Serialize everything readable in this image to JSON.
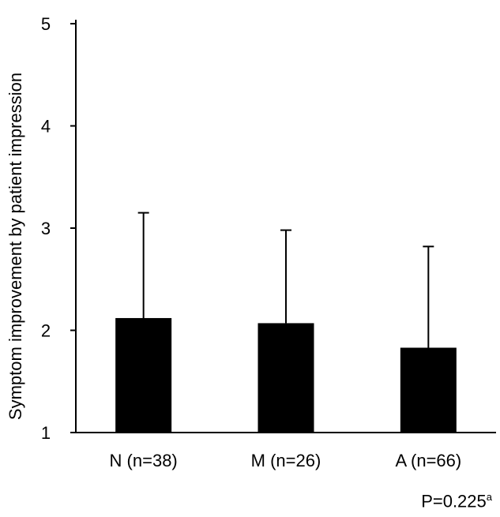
{
  "chart_data": {
    "type": "bar",
    "categories": [
      "N (n=38)",
      "M (n=26)",
      "A (n=66)"
    ],
    "values": [
      2.12,
      2.07,
      1.83
    ],
    "error_upper": [
      3.15,
      2.98,
      2.82
    ],
    "ylabel": "Symptom improvement by patient impression",
    "xlabel": "",
    "ylim": [
      1,
      5
    ],
    "yticks": [
      1,
      2,
      3,
      4,
      5
    ],
    "grid": false,
    "bar_color": "#000000",
    "annotation": {
      "text": "P=0.225",
      "superscript": "a"
    }
  }
}
